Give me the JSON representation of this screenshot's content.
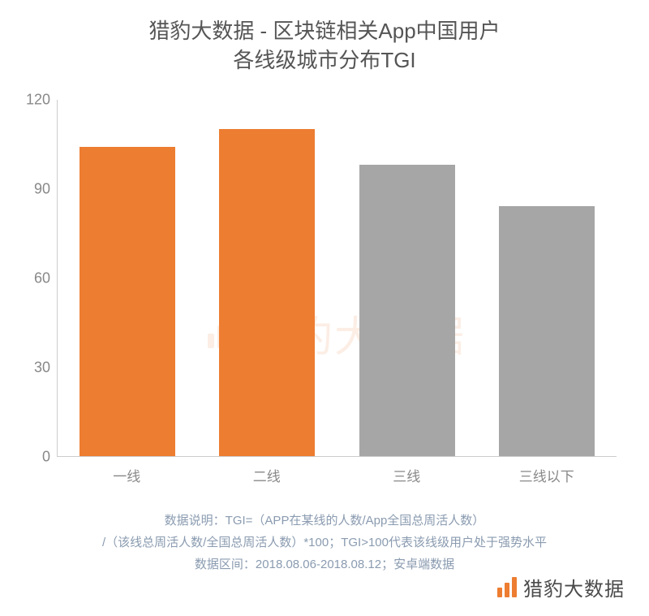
{
  "chart": {
    "type": "bar",
    "title_line1": "猎豹大数据 - 区块链相关App中国用户",
    "title_line2": "各线级城市分布TGI",
    "title_fontsize": 26,
    "title_color": "#555555",
    "categories": [
      "一线",
      "二线",
      "三线",
      "三线以下"
    ],
    "values": [
      104,
      110,
      98,
      84
    ],
    "bar_colors": [
      "#ed7d31",
      "#ed7d31",
      "#a6a6a6",
      "#a6a6a6"
    ],
    "ylim": [
      0,
      120
    ],
    "ytick_step": 30,
    "yticks": [
      0,
      30,
      60,
      90,
      120
    ],
    "y_label_fontsize": 18,
    "y_label_color": "#888888",
    "x_label_fontsize": 17,
    "x_label_color": "#888888",
    "axis_color": "#cccccc",
    "background_color": "#ffffff",
    "bar_width_ratio": 0.78
  },
  "watermark": {
    "text": "猎豹大数据",
    "color": "#ed7d31",
    "opacity": 0.12,
    "fontsize": 52,
    "icon_bar_heights": [
      18,
      28,
      38
    ]
  },
  "notes": {
    "line1": "数据说明：TGI=（APP在某线的人数/App全国总周活人数）",
    "line2": "/（该线总周活人数/全国总周活人数）*100；TGI>100代表该线级用户处于强势水平",
    "line3": "数据区间：2018.08.06-2018.08.12；安卓端数据",
    "color": "#8a9bb0",
    "fontsize": 15
  },
  "footer_logo": {
    "text": "猎豹大数据",
    "color": "#4a4a4a",
    "icon_color": "#ed7d31",
    "icon_bar_heights": [
      12,
      18,
      25
    ],
    "fontsize": 24
  }
}
